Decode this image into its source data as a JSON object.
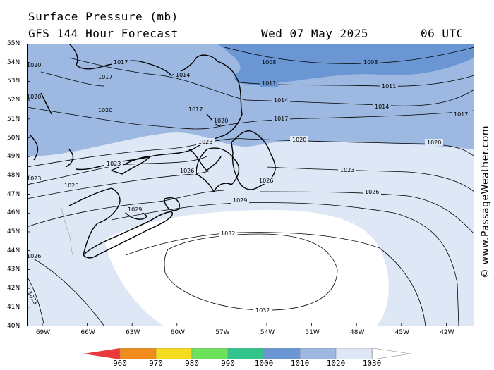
{
  "header": {
    "title": "Surface Pressure (mb)",
    "subtitle": "GFS 144 Hour Forecast",
    "date": "Wed 07 May 2025",
    "time": "06 UTC"
  },
  "credit": "© www.PassageWeather.com",
  "axes": {
    "lat_labels": [
      "55N",
      "54N",
      "53N",
      "52N",
      "51N",
      "50N",
      "49N",
      "48N",
      "47N",
      "46N",
      "45N",
      "44N",
      "43N",
      "42N",
      "41N",
      "40N"
    ],
    "lon_labels": [
      "69W",
      "66W",
      "63W",
      "60W",
      "57W",
      "54W",
      "51W",
      "48W",
      "45W",
      "42W"
    ]
  },
  "isobars": {
    "l1008": "1008",
    "l1008b": "1008",
    "l1011": "1011",
    "l1011b": "1011",
    "l1014": "1014",
    "l1014b": "1014",
    "l1014c": "1014",
    "l1017": "1017",
    "l1017b": "1017",
    "l1017c": "1017",
    "l1017d": "1017",
    "l1017e": "1017",
    "l1020": "1020",
    "l1020b": "1020",
    "l1020c": "1020",
    "l1020d": "1020",
    "l1020e": "1020",
    "l1020f": "1020",
    "l1023": "1023",
    "l1023b": "1023",
    "l1023c": "1023",
    "l1023d": "1023",
    "l1023e": "1023",
    "l1026": "1026",
    "l1026b": "1026",
    "l1026c": "1026",
    "l1026d": "1026",
    "l1026e": "1026",
    "l1029": "1029",
    "l1029b": "1029",
    "l1032": "1032",
    "l1032b": "1032"
  },
  "colorbar": {
    "labels": [
      "960",
      "970",
      "980",
      "990",
      "1000",
      "1010",
      "1020",
      "1030"
    ],
    "colors": [
      "#e8393c",
      "#f08c1c",
      "#f5dc1e",
      "#6ce25c",
      "#33c48c",
      "#6a97d4",
      "#9db9e1",
      "#dde7f5",
      "#ffffff"
    ]
  }
}
